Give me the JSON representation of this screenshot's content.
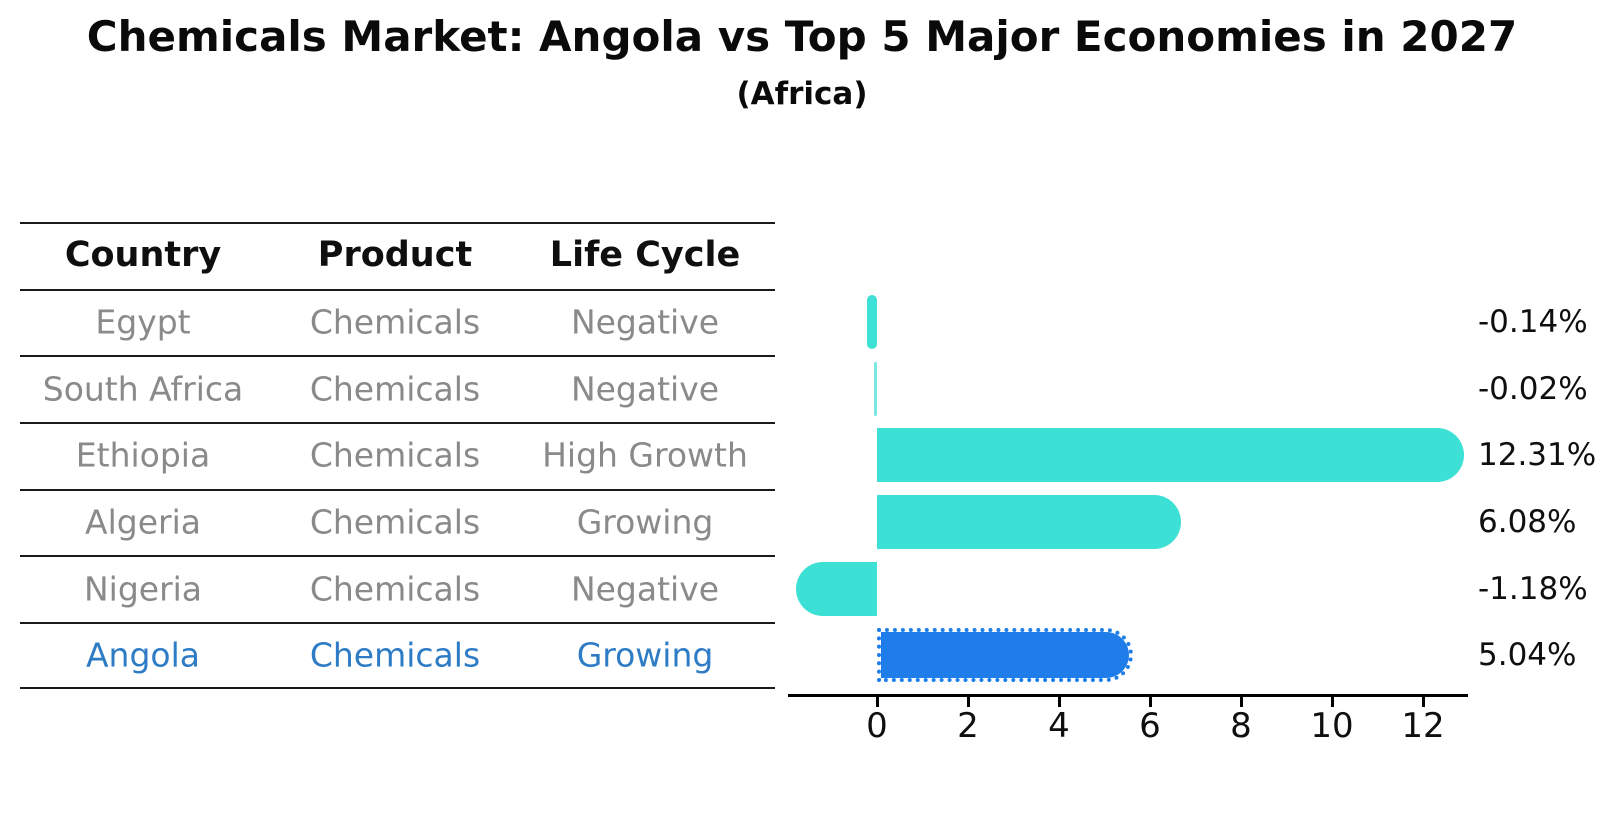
{
  "title": "Chemicals Market: Angola vs Top 5 Major Economies in 2027",
  "subtitle": "(Africa)",
  "table": {
    "headers": [
      "Country",
      "Product",
      "Life Cycle"
    ],
    "rows": [
      {
        "country": "Egypt",
        "product": "Chemicals",
        "life_cycle": "Negative",
        "highlight": false
      },
      {
        "country": "South Africa",
        "product": "Chemicals",
        "life_cycle": "Negative",
        "highlight": false
      },
      {
        "country": "Ethiopia",
        "product": "Chemicals",
        "life_cycle": "High Growth",
        "highlight": false
      },
      {
        "country": "Algeria",
        "product": "Chemicals",
        "life_cycle": "Growing",
        "highlight": false
      },
      {
        "country": "Nigeria",
        "product": "Chemicals",
        "life_cycle": "Negative",
        "highlight": false
      },
      {
        "country": "Angola",
        "product": "Chemicals",
        "life_cycle": "Growing",
        "highlight": true
      }
    ]
  },
  "chart_data": {
    "type": "bar",
    "orientation": "horizontal",
    "categories": [
      "Egypt",
      "South Africa",
      "Ethiopia",
      "Algeria",
      "Nigeria",
      "Angola"
    ],
    "values": [
      -0.14,
      -0.02,
      12.31,
      6.08,
      -1.18,
      5.04
    ],
    "value_labels": [
      "-0.14%",
      "-0.02%",
      "12.31%",
      "6.08%",
      "-1.18%",
      "5.04%"
    ],
    "x_ticks": [
      0,
      2,
      4,
      6,
      8,
      10,
      12
    ],
    "xlim": [
      -1.96,
      13.0
    ],
    "grid": false,
    "legend": "none",
    "highlight_index": 5
  },
  "colors": {
    "bar_teal": "#3DE0D5",
    "bar_blue": "#1E7DE8",
    "accent_blue": "#2E7CC6",
    "text_gray": "#8a8a8a",
    "line_dark": "#1a1a1a"
  }
}
